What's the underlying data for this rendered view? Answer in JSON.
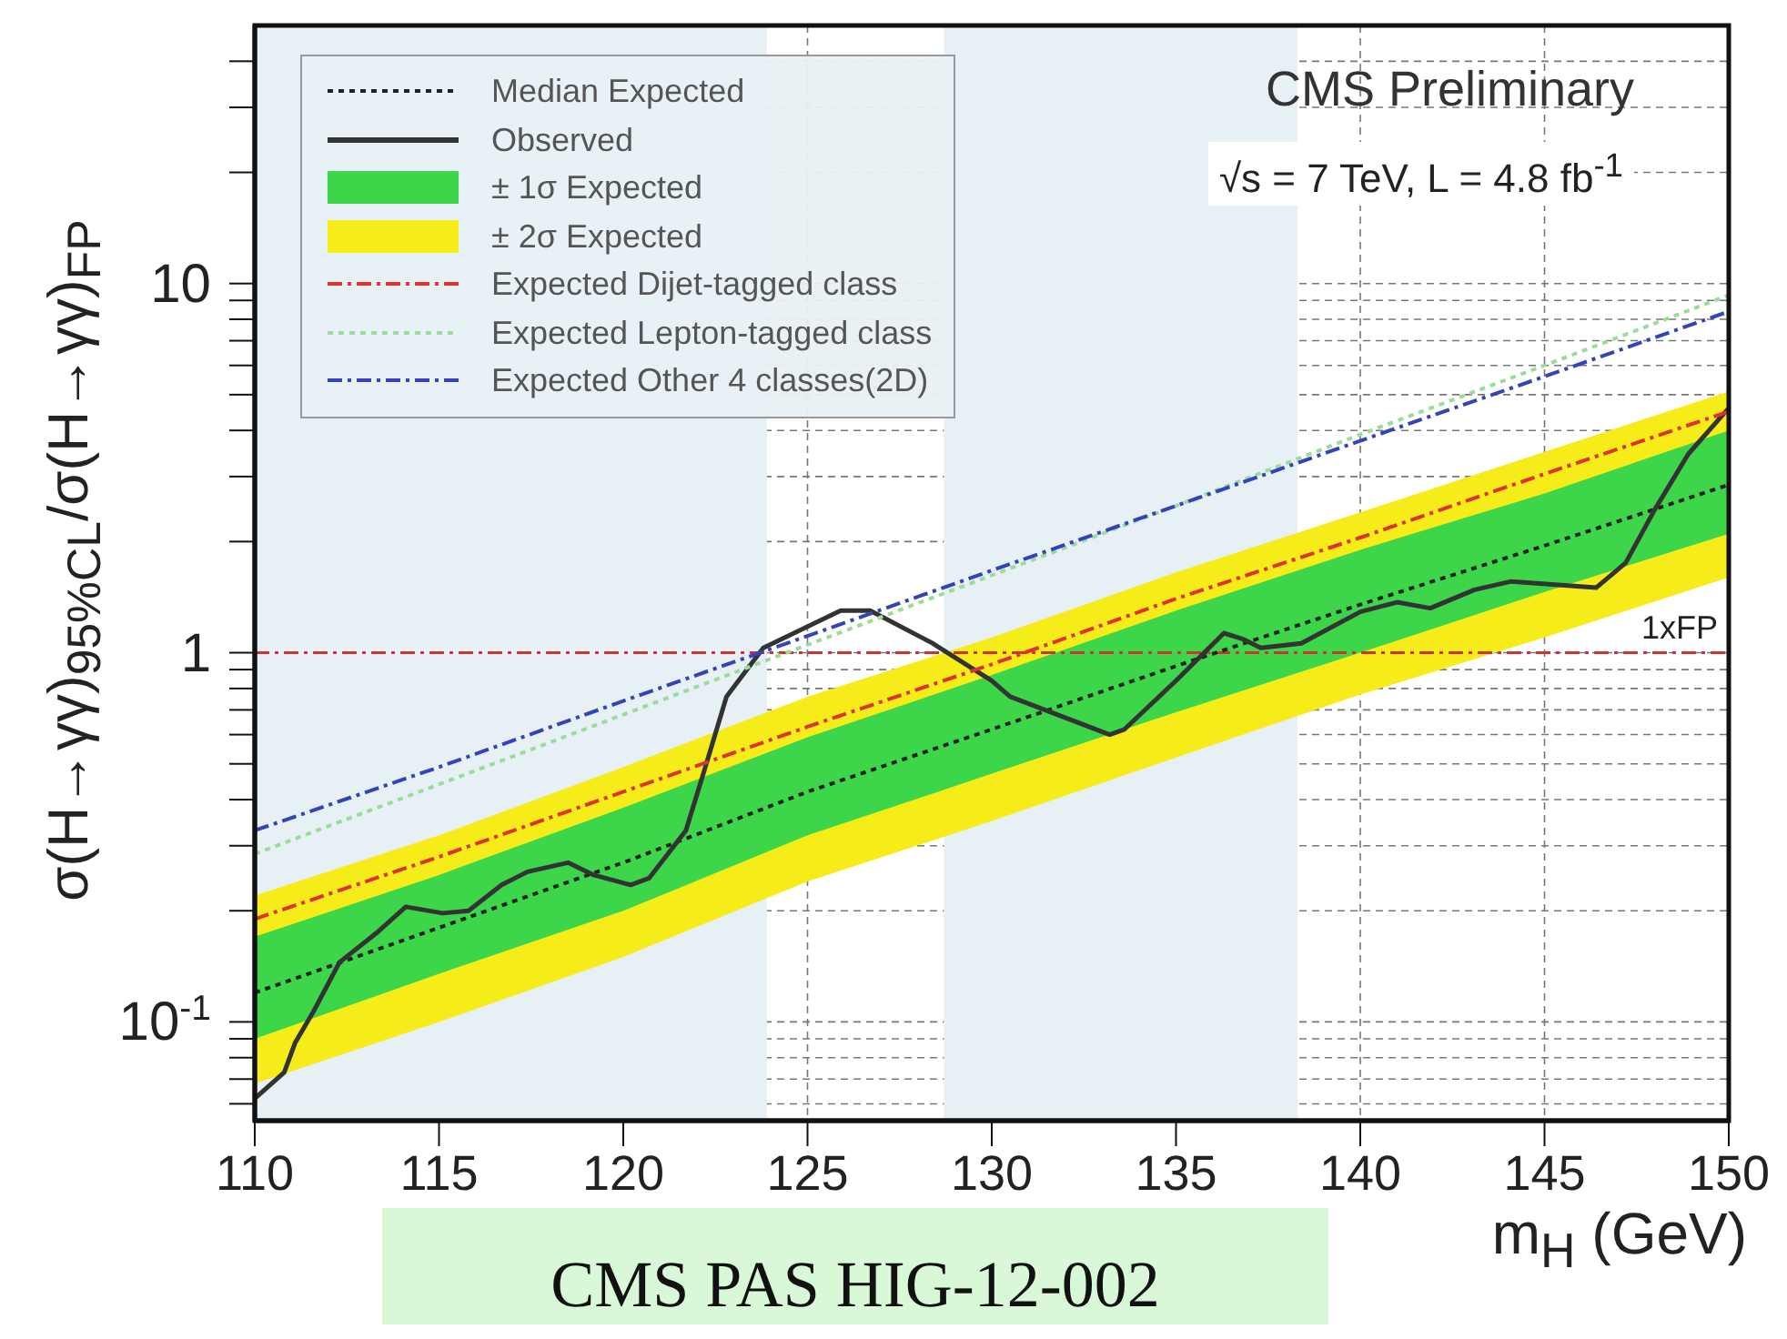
{
  "chart_data": {
    "type": "line",
    "xlabel": "m$_{H}$ (GeV)",
    "ylabel": "σ(H→γγ)$_{95%CL}$/σ(H→γγ)$_{FP}$",
    "annotations": [
      "CMS Preliminary",
      "√s = 7 TeV, L = 4.8 fb$^{-1}$",
      "CMS PAS HIG-12-002"
    ],
    "log": true,
    "grid": true,
    "legend": "top left",
    "xlim": [
      110,
      150
    ],
    "xticks": [
      110,
      115,
      120,
      125,
      130,
      135,
      140,
      145,
      150
    ],
    "ylim": [
      0.054,
      50
    ],
    "yticks": [
      {
        "value": 0.06,
        "label": null
      },
      {
        "value": 0.07,
        "label": null
      },
      {
        "value": 0.08,
        "label": null
      },
      {
        "value": 0.09,
        "label": null
      },
      {
        "value": 0.1,
        "label": "10$^{-1}$"
      },
      {
        "value": 0.2,
        "label": null
      },
      {
        "value": 0.3,
        "label": null
      },
      {
        "value": 0.4,
        "label": null
      },
      {
        "value": 0.5,
        "label": null
      },
      {
        "value": 0.6,
        "label": null
      },
      {
        "value": 0.7,
        "label": null
      },
      {
        "value": 0.8,
        "label": null
      },
      {
        "value": 0.9,
        "label": null
      },
      1,
      {
        "value": 2,
        "label": null
      },
      {
        "value": 3,
        "label": null
      },
      {
        "value": 4,
        "label": null
      },
      {
        "value": 5,
        "label": null
      },
      {
        "value": 6,
        "label": null
      },
      {
        "value": 7,
        "label": null
      },
      {
        "value": 8,
        "label": null
      },
      {
        "value": 9,
        "label": null
      },
      10,
      {
        "value": 20,
        "label": null
      },
      {
        "value": 30,
        "label": null
      },
      {
        "value": 40,
        "label": null
      }
    ],
    "x": [
      110,
      115,
      120,
      125,
      130,
      135,
      140,
      145,
      150
    ],
    "series": [
      {
        "name": "Median Expected",
        "type": "line",
        "color": "#222222",
        "line_style": "dotted",
        "values": [
          0.12,
          0.18,
          0.27,
          0.42,
          0.62,
          0.92,
          1.35,
          1.95,
          2.85
        ]
      },
      {
        "name": "Observed",
        "type": "line",
        "color": "#333333",
        "line_style": "solid",
        "x": [
          110,
          110.8,
          111.1,
          111.6,
          112.3,
          113.3,
          114.1,
          115.1,
          115.8,
          116.7,
          117.4,
          118.5,
          119.2,
          120.2,
          120.7,
          121.7,
          122.2,
          122.8,
          123.8,
          125.9,
          126.7,
          128.4,
          130,
          130.5,
          133.2,
          133.6,
          135,
          136.3,
          136.8,
          137.3,
          138.4,
          140,
          141,
          141.9,
          143.1,
          144.1,
          146.4,
          147.2,
          148,
          148.9,
          150
        ],
        "values": [
          0.062,
          0.073,
          0.088,
          0.107,
          0.145,
          0.174,
          0.205,
          0.197,
          0.2,
          0.235,
          0.255,
          0.27,
          0.25,
          0.235,
          0.245,
          0.33,
          0.48,
          0.76,
          1.03,
          1.3,
          1.3,
          1.06,
          0.84,
          0.76,
          0.6,
          0.62,
          0.84,
          1.13,
          1.09,
          1.03,
          1.06,
          1.29,
          1.37,
          1.32,
          1.48,
          1.56,
          1.5,
          1.75,
          2.45,
          3.45,
          4.6
        ]
      },
      {
        "name": "± 1σ Expected",
        "type": "area",
        "color": "#3dd64a",
        "values": [
          null,
          null,
          null,
          null,
          null,
          null,
          null,
          null,
          null
        ],
        "lower": [
          0.09,
          0.135,
          0.2,
          0.32,
          0.47,
          0.69,
          1.0,
          1.46,
          2.1
        ],
        "upper": [
          0.17,
          0.25,
          0.38,
          0.59,
          0.87,
          1.3,
          1.9,
          2.7,
          4.0
        ]
      },
      {
        "name": "± 2σ Expected",
        "type": "area",
        "color": "#f5ec1a",
        "values": [
          null,
          null,
          null,
          null,
          null,
          null,
          null,
          null,
          null
        ],
        "lower": [
          0.068,
          0.1,
          0.15,
          0.24,
          0.35,
          0.52,
          0.77,
          1.1,
          1.6
        ],
        "upper": [
          0.22,
          0.32,
          0.49,
          0.76,
          1.1,
          1.65,
          2.4,
          3.5,
          5.1
        ]
      },
      {
        "name": "Expected Dijet-tagged class",
        "type": "line",
        "color": "#dd3333",
        "line_style": "dashed",
        "values": [
          0.19,
          0.28,
          0.42,
          0.63,
          0.93,
          1.4,
          2.05,
          3.05,
          4.5
        ]
      },
      {
        "name": "Expected Lepton-tagged class",
        "type": "line",
        "color": "#99dd99",
        "line_style": "dotted",
        "values": [
          0.285,
          0.44,
          0.68,
          1.05,
          1.62,
          2.5,
          3.9,
          6.0,
          9.3
        ]
      },
      {
        "name": "Expected Other 4 classes(2D)",
        "type": "line",
        "color": "#3344bb",
        "line_style": "dashed",
        "values": [
          0.33,
          0.49,
          0.74,
          1.11,
          1.67,
          2.5,
          3.75,
          5.6,
          8.4
        ]
      }
    ],
    "ref_lines": [
      {
        "axis": "y",
        "value": 1,
        "label": "1xFP",
        "color": "#cc3333",
        "line_style": "dashed"
      }
    ],
    "bands": [
      {
        "axis": "x",
        "from": 110,
        "to": 123.9,
        "color": "#e6f0f5"
      },
      {
        "axis": "x",
        "from": 128.7,
        "to": 138.3,
        "color": "#e6f0f5"
      }
    ]
  }
}
